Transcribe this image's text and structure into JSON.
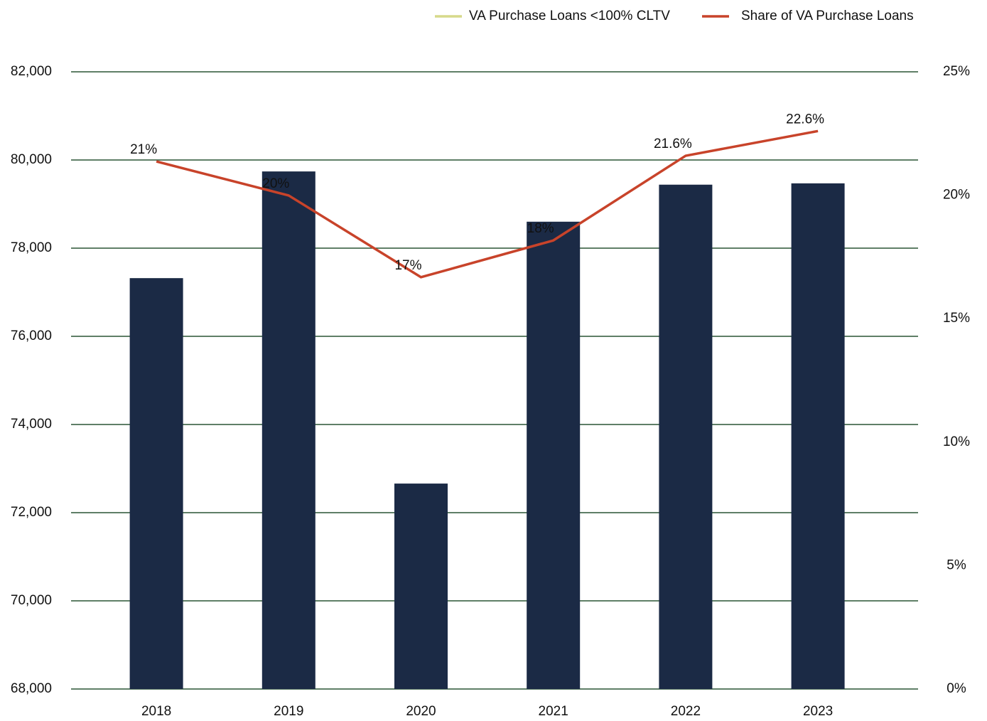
{
  "chart_data": {
    "type": "bar+line",
    "categories": [
      "2018",
      "2019",
      "2020",
      "2021",
      "2022",
      "2023"
    ],
    "series": [
      {
        "name": "VA Purchase Loans <100% CLTV",
        "type": "bar",
        "color": "#1b2a45",
        "legend_color": "#d6d98a",
        "values": [
          77320,
          79740,
          72660,
          78600,
          79440,
          79470
        ]
      },
      {
        "name": "Share of VA Purchase Loans",
        "type": "line",
        "axis": "y2",
        "color": "#c8432a",
        "values": [
          21.37,
          19.99,
          16.68,
          18.17,
          21.6,
          22.6
        ],
        "value_labels": [
          "21%",
          "20%",
          "17%",
          "18%",
          "21.6%",
          "22.6%"
        ]
      }
    ],
    "ylim": [
      68000,
      82000
    ],
    "yticks": [
      {
        "value": 68000,
        "label": "68,000"
      },
      {
        "value": 70000,
        "label": "70,000"
      },
      {
        "value": 72000,
        "label": "72,000"
      },
      {
        "value": 74000,
        "label": "74,000"
      },
      {
        "value": 76000,
        "label": "76,000"
      },
      {
        "value": 78000,
        "label": "78,000"
      },
      {
        "value": 80000,
        "label": "80,000"
      },
      {
        "value": 82000,
        "label": "82,000"
      }
    ],
    "y2lim": [
      0,
      25
    ],
    "y2ticks": [
      {
        "value": 0,
        "label": "0%"
      },
      {
        "value": 5,
        "label": "5%"
      },
      {
        "value": 10,
        "label": "10%"
      },
      {
        "value": 15,
        "label": "15%"
      },
      {
        "value": 20,
        "label": "20%"
      },
      {
        "value": 25,
        "label": "25%"
      }
    ],
    "grid": true,
    "legend": "top-right"
  }
}
